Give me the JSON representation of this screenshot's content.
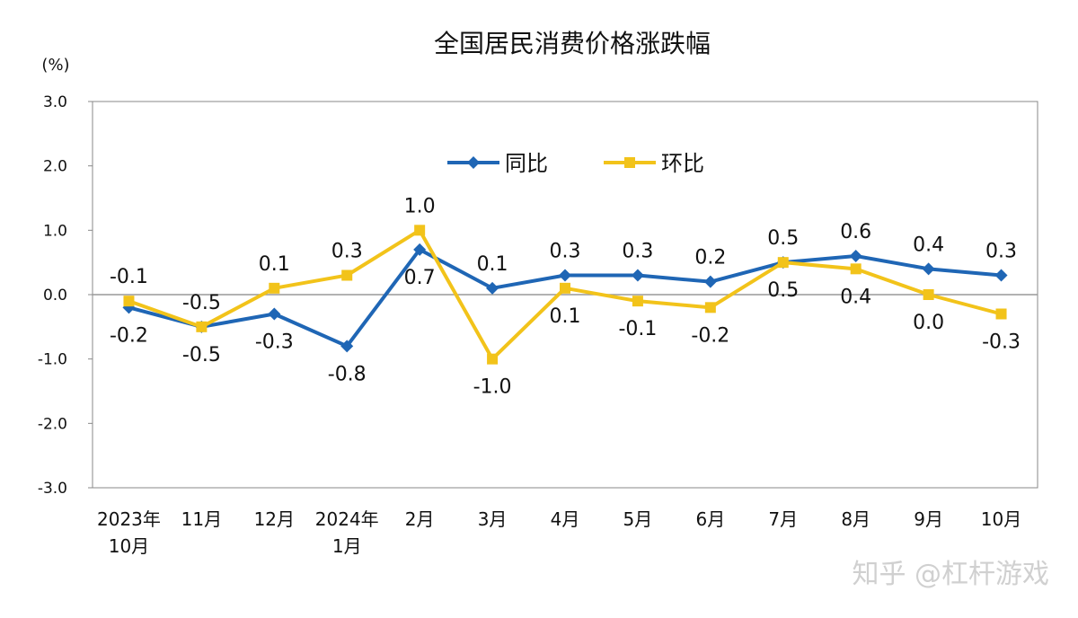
{
  "chart_data": {
    "type": "line",
    "title": "全国居民消费价格涨跌幅",
    "ylabel": "(%)",
    "xlabel": "",
    "ylim": [
      -3.0,
      3.0
    ],
    "yticks": [
      "3.0",
      "2.0",
      "1.0",
      "0.0",
      "-1.0",
      "-2.0",
      "-3.0"
    ],
    "grid": false,
    "legend_position": "top-center",
    "categories": [
      [
        "2023年",
        "10月"
      ],
      [
        "11月"
      ],
      [
        "12月"
      ],
      [
        "2024年",
        "1月"
      ],
      [
        "2月"
      ],
      [
        "3月"
      ],
      [
        "4月"
      ],
      [
        "5月"
      ],
      [
        "6月"
      ],
      [
        "7月"
      ],
      [
        "8月"
      ],
      [
        "9月"
      ],
      [
        "10月"
      ]
    ],
    "series": [
      {
        "name": "同比",
        "color": "#1f66b5",
        "marker": "diamond",
        "values": [
          -0.2,
          -0.5,
          -0.3,
          -0.8,
          0.7,
          0.1,
          0.3,
          0.3,
          0.2,
          0.5,
          0.6,
          0.4,
          0.3
        ],
        "labels": [
          "-0.2",
          "-0.5",
          "-0.3",
          "-0.8",
          "0.7",
          "0.1",
          "0.3",
          "0.3",
          "0.2",
          "0.5",
          "0.6",
          "0.4",
          "0.3"
        ]
      },
      {
        "name": "环比",
        "color": "#f2c31a",
        "marker": "square",
        "values": [
          -0.1,
          -0.5,
          0.1,
          0.3,
          1.0,
          -1.0,
          0.1,
          -0.1,
          -0.2,
          0.5,
          0.4,
          0.0,
          -0.3
        ],
        "labels": [
          "-0.1",
          "-0.5",
          "0.1",
          "0.3",
          "1.0",
          "-1.0",
          "0.1",
          "-0.1",
          "-0.2",
          "0.5",
          "0.4",
          "0.0",
          "-0.3"
        ]
      }
    ]
  },
  "watermark": "知乎 @杠杆游戏"
}
